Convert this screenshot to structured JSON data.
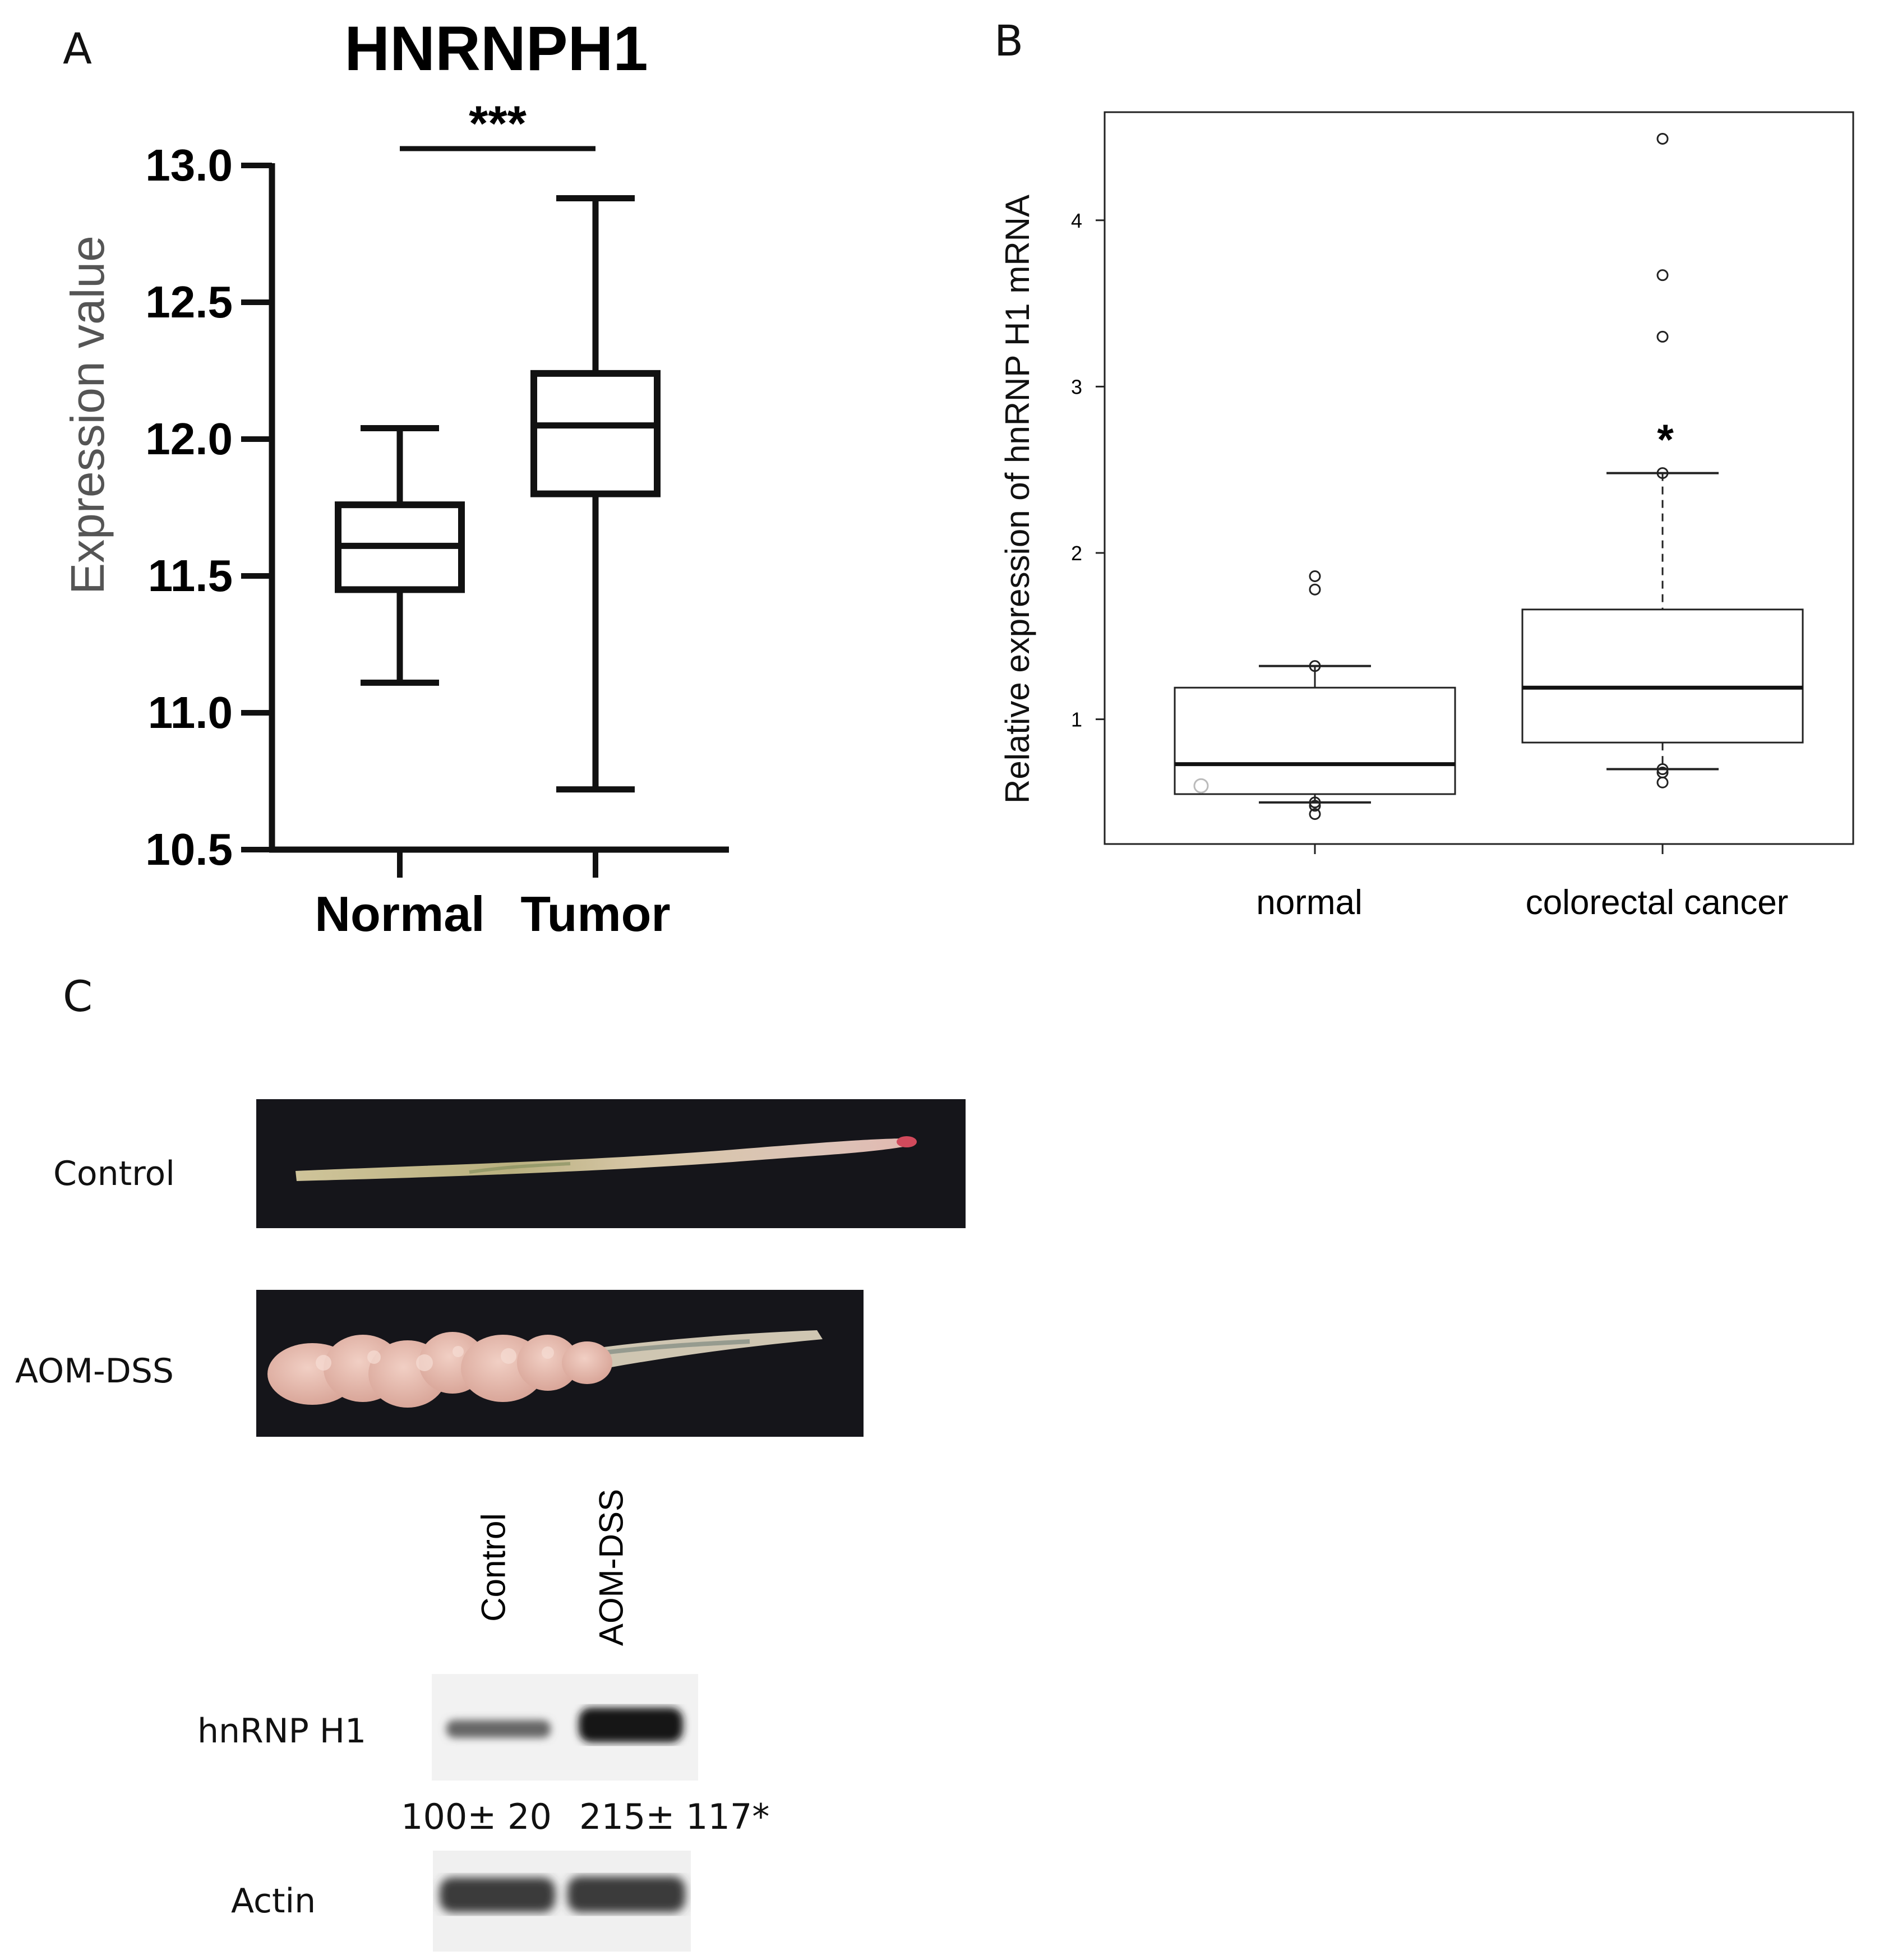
{
  "panels": {
    "a": {
      "label": "A"
    },
    "b": {
      "label": "B"
    },
    "c": {
      "label": "C"
    }
  },
  "chart_data": [
    {
      "panel": "A",
      "type": "box",
      "title": "HNRNPH1",
      "ylabel": "Expression value",
      "xlabel": "",
      "ylim": [
        10.5,
        13.0
      ],
      "yticks": [
        10.5,
        11.0,
        11.5,
        12.0,
        12.5,
        13.0
      ],
      "ytick_labels": [
        "10.5",
        "11.0",
        "11.5",
        "12.0",
        "12.5",
        "13.0"
      ],
      "categories": [
        "Normal",
        "Tumor"
      ],
      "boxes": [
        {
          "name": "Normal",
          "min": 11.11,
          "q1": 11.45,
          "median": 11.61,
          "q3": 11.76,
          "max": 12.04
        },
        {
          "name": "Tumor",
          "min": 10.72,
          "q1": 11.8,
          "median": 12.05,
          "q3": 12.24,
          "max": 12.88
        }
      ],
      "significance": "***",
      "grid": false
    },
    {
      "panel": "B",
      "type": "box",
      "title": "",
      "ylabel": "Relative expression of hnRNP H1 mRNA",
      "xlabel": "",
      "ylim": [
        0.25,
        4.65
      ],
      "yticks": [
        1,
        2,
        3,
        4
      ],
      "ytick_labels": [
        "1",
        "2",
        "3",
        "4"
      ],
      "categories": [
        "normal",
        "colorectal cancer"
      ],
      "boxes": [
        {
          "name": "normal",
          "min": 0.5,
          "q1": 0.55,
          "median": 0.73,
          "q3": 1.19,
          "max": 1.32,
          "points": [
            1.86,
            1.78,
            1.32,
            0.5,
            0.48,
            0.43
          ]
        },
        {
          "name": "colorectal cancer",
          "min": 0.7,
          "q1": 0.86,
          "median": 1.19,
          "q3": 1.66,
          "max": 2.48,
          "points": [
            4.49,
            3.67,
            3.3,
            2.48,
            0.7,
            0.68,
            0.62
          ]
        }
      ],
      "extra_points": [
        {
          "x": 0.7,
          "y": 0.6
        }
      ],
      "significance": "*",
      "grid": false
    }
  ],
  "photos": {
    "rows": [
      {
        "label": "Control"
      },
      {
        "label": "AOM-DSS"
      }
    ]
  },
  "blot": {
    "lanes": [
      "Control",
      "AOM-DSS"
    ],
    "rows": [
      {
        "label": "hnRNP H1"
      },
      {
        "label": "Actin"
      }
    ],
    "quantification": [
      "100± 20",
      "215± 117*"
    ],
    "band_intensity": {
      "hnRNP H1": [
        0.62,
        1.0
      ],
      "Actin": [
        0.82,
        0.82
      ]
    }
  }
}
